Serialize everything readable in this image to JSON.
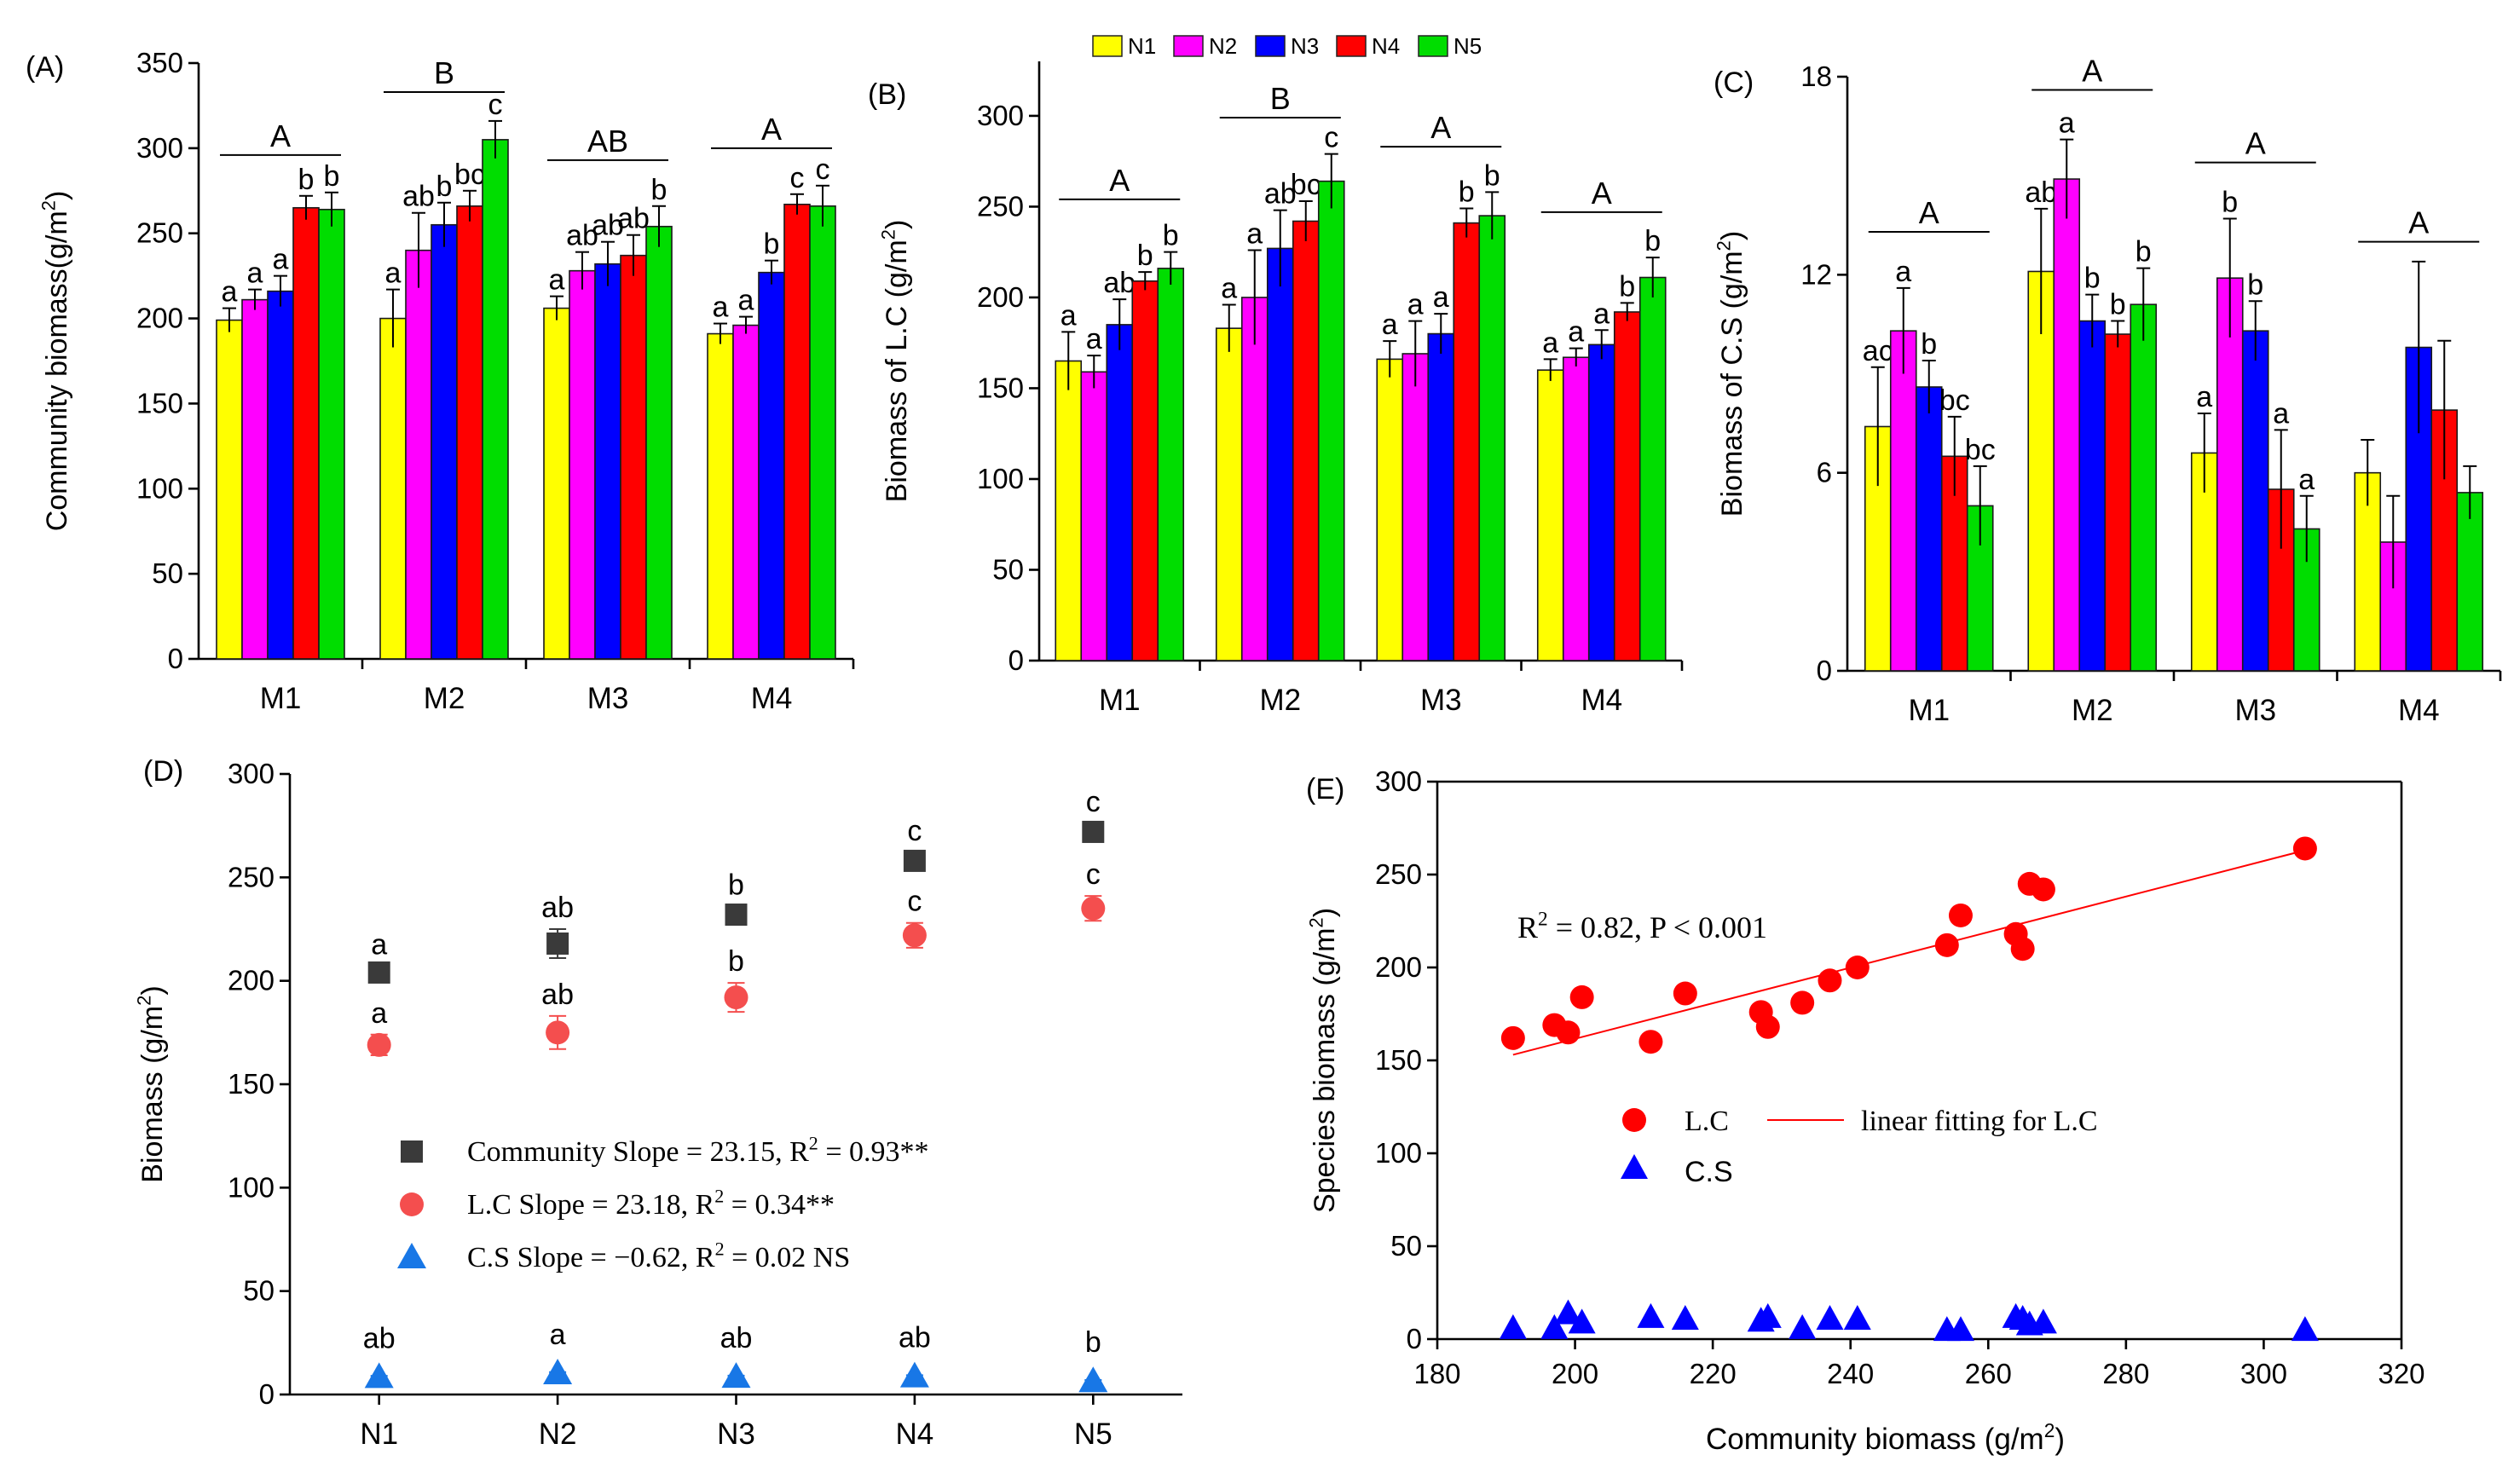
{
  "colors": {
    "N1": "#ffff00",
    "N2": "#ff00ff",
    "N3": "#0000ff",
    "N4": "#ff0000",
    "N5": "#00dd00",
    "community": "#3a3a3a",
    "lc_marker": "#f44e4e",
    "cs_marker": "#1877e6",
    "scatter_lc": "#ff0000",
    "scatter_cs": "#0000ff",
    "fit_line": "#ff0000"
  },
  "legend_top": [
    {
      "key": "N1",
      "label": "N1"
    },
    {
      "key": "N2",
      "label": "N2"
    },
    {
      "key": "N3",
      "label": "N3"
    },
    {
      "key": "N4",
      "label": "N4"
    },
    {
      "key": "N5",
      "label": "N5"
    }
  ],
  "chart_data": [
    {
      "id": "A",
      "type": "bar",
      "panel_label": "(A)",
      "ylabel": "Community biomass(g/m",
      "ylabel_sup": "2",
      "ylabel_tail": ")",
      "ylim": [
        0,
        350
      ],
      "yticks": [
        "0",
        "50",
        "100",
        "150",
        "200",
        "250",
        "300",
        "350"
      ],
      "categories": [
        "M1",
        "M2",
        "M3",
        "M4"
      ],
      "series": [
        {
          "name": "N1",
          "values": [
            199,
            200,
            206,
            191
          ],
          "errors": [
            7,
            17,
            7,
            6
          ]
        },
        {
          "name": "N2",
          "values": [
            211,
            240,
            228,
            196
          ],
          "errors": [
            6,
            22,
            11,
            5
          ]
        },
        {
          "name": "N3",
          "values": [
            216,
            255,
            232,
            227
          ],
          "errors": [
            9,
            13,
            13,
            7
          ]
        },
        {
          "name": "N4",
          "values": [
            265,
            266,
            237,
            267
          ],
          "errors": [
            7,
            9,
            12,
            6
          ]
        },
        {
          "name": "N5",
          "values": [
            264,
            305,
            254,
            266
          ],
          "errors": [
            10,
            11,
            12,
            12
          ]
        }
      ],
      "letters": [
        [
          "a",
          "a",
          "a",
          "b",
          "b"
        ],
        [
          "a",
          "ab",
          "b",
          "bc",
          "c"
        ],
        [
          "a",
          "ab",
          "ab",
          "ab",
          "b"
        ],
        [
          "a",
          "a",
          "b",
          "c",
          "c"
        ]
      ],
      "groups": [
        "A",
        "B",
        "AB",
        "A"
      ],
      "group_y": [
        296,
        333,
        293,
        300
      ]
    },
    {
      "id": "B",
      "type": "bar",
      "panel_label": "(B)",
      "ylabel": "Biomass of L.C (g/m",
      "ylabel_sup": "2",
      "ylabel_tail": ")",
      "ylim": [
        0,
        330
      ],
      "yticks": [
        "0",
        "50",
        "100",
        "150",
        "200",
        "250",
        "300"
      ],
      "categories": [
        "M1",
        "M2",
        "M3",
        "M4"
      ],
      "series": [
        {
          "name": "N1",
          "values": [
            165,
            183,
            166,
            160
          ],
          "errors": [
            16,
            13,
            10,
            6
          ]
        },
        {
          "name": "N2",
          "values": [
            159,
            200,
            169,
            167
          ],
          "errors": [
            9,
            26,
            18,
            5
          ]
        },
        {
          "name": "N3",
          "values": [
            185,
            227,
            180,
            174
          ],
          "errors": [
            14,
            21,
            11,
            8
          ]
        },
        {
          "name": "N4",
          "values": [
            209,
            242,
            241,
            192
          ],
          "errors": [
            5,
            11,
            8,
            5
          ]
        },
        {
          "name": "N5",
          "values": [
            216,
            264,
            245,
            211
          ],
          "errors": [
            9,
            15,
            13,
            11
          ]
        }
      ],
      "letters": [
        [
          "a",
          "a",
          "ab",
          "b",
          "b"
        ],
        [
          "a",
          "a",
          "ab",
          "bc",
          "c"
        ],
        [
          "a",
          "a",
          "a",
          "b",
          "b"
        ],
        [
          "a",
          "a",
          "a",
          "b",
          "b"
        ]
      ],
      "groups": [
        "A",
        "B",
        "A",
        "A"
      ],
      "group_y": [
        254,
        299,
        283,
        247
      ]
    },
    {
      "id": "C",
      "type": "bar",
      "panel_label": "(C)",
      "ylabel": "Biomass of C.S (g/m",
      "ylabel_sup": "2",
      "ylabel_tail": ")",
      "ylim": [
        0,
        18
      ],
      "yticks": [
        "0",
        "6",
        "12",
        "18"
      ],
      "categories": [
        "M1",
        "M2",
        "M3",
        "M4"
      ],
      "series": [
        {
          "name": "N1",
          "values": [
            7.4,
            12.1,
            6.6,
            6.0
          ],
          "errors": [
            1.8,
            1.9,
            1.2,
            1.0
          ]
        },
        {
          "name": "N2",
          "values": [
            10.3,
            14.9,
            11.9,
            3.9
          ],
          "errors": [
            1.3,
            1.2,
            1.8,
            1.4
          ]
        },
        {
          "name": "N3",
          "values": [
            8.6,
            10.6,
            10.3,
            9.8
          ],
          "errors": [
            0.8,
            0.8,
            0.9,
            2.6
          ]
        },
        {
          "name": "N4",
          "values": [
            6.5,
            10.2,
            5.5,
            7.9
          ],
          "errors": [
            1.2,
            0.4,
            1.8,
            2.1
          ]
        },
        {
          "name": "N5",
          "values": [
            5.0,
            11.1,
            4.3,
            5.4
          ],
          "errors": [
            1.2,
            1.1,
            1.0,
            0.8
          ]
        }
      ],
      "letters": [
        [
          "ac",
          "a",
          "b",
          "bc",
          "bc"
        ],
        [
          "ab",
          "a",
          "b",
          "b",
          "b"
        ],
        [
          "a",
          "b",
          "b",
          "a",
          "a"
        ],
        [
          "",
          "",
          "",
          "",
          ""
        ]
      ],
      "groups": [
        "A",
        "A",
        "A",
        "A"
      ],
      "group_y": [
        13.3,
        17.6,
        15.4,
        13.0
      ]
    },
    {
      "id": "D",
      "type": "scatter",
      "panel_label": "(D)",
      "ylabel": "Biomass (g/m",
      "ylabel_sup": "2",
      "ylabel_tail": ")",
      "ylim": [
        0,
        300
      ],
      "yticks": [
        "0",
        "50",
        "100",
        "150",
        "200",
        "250",
        "300"
      ],
      "categories": [
        "N1",
        "N2",
        "N3",
        "N4",
        "N5"
      ],
      "series": [
        {
          "name": "Community",
          "values": [
            204,
            218,
            232,
            258,
            272
          ],
          "errors": [
            3,
            7,
            4,
            4,
            4
          ],
          "letters": [
            "a",
            "ab",
            "b",
            "c",
            "c"
          ],
          "legend": "Community Slope = 23.15, R",
          "legend_sup": "2",
          "legend_tail": " = 0.93**"
        },
        {
          "name": "L.C",
          "values": [
            169,
            175,
            192,
            222,
            235
          ],
          "errors": [
            5,
            8,
            7,
            6,
            6
          ],
          "letters": [
            "a",
            "ab",
            "b",
            "c",
            "c"
          ],
          "legend": "L.C Slope = 23.18, R",
          "legend_sup": "2",
          "legend_tail": " = 0.34**"
        },
        {
          "name": "C.S",
          "values": [
            8.5,
            10.3,
            8.6,
            8.8,
            6.5
          ],
          "errors": [
            0.5,
            0.5,
            0.5,
            0.5,
            0.5
          ],
          "letters": [
            "ab",
            "a",
            "ab",
            "ab",
            "b"
          ],
          "legend": "C.S Slope = −0.62, R",
          "legend_sup": "2",
          "legend_tail": " = 0.02 NS"
        }
      ]
    },
    {
      "id": "E",
      "type": "scatter",
      "panel_label": "(E)",
      "xlabel": "Community biomass (g/m",
      "xlabel_sup": "2",
      "xlabel_tail": ")",
      "ylabel": "Species biomass (g/m",
      "ylabel_sup": "2",
      "ylabel_tail": ")",
      "xlim": [
        180,
        320
      ],
      "ylim": [
        0,
        300
      ],
      "xticks": [
        "180",
        "200",
        "220",
        "240",
        "260",
        "280",
        "300",
        "320"
      ],
      "yticks": [
        "0",
        "50",
        "100",
        "150",
        "200",
        "250",
        "300"
      ],
      "annotation": "R",
      "annotation_sup": "2",
      "annotation_tail": " = 0.82, P < 0.001",
      "legend": {
        "lc": "L.C",
        "fit": "linear fitting for L.C",
        "cs": "C.S"
      },
      "fit": {
        "x": [
          191,
          307
        ],
        "y": [
          153,
          264
        ]
      },
      "lc_points": [
        {
          "x": 191,
          "y": 162
        },
        {
          "x": 197,
          "y": 169
        },
        {
          "x": 199,
          "y": 165
        },
        {
          "x": 201,
          "y": 184
        },
        {
          "x": 211,
          "y": 160
        },
        {
          "x": 216,
          "y": 186
        },
        {
          "x": 227,
          "y": 176
        },
        {
          "x": 228,
          "y": 168
        },
        {
          "x": 233,
          "y": 181
        },
        {
          "x": 237,
          "y": 193
        },
        {
          "x": 241,
          "y": 200
        },
        {
          "x": 254,
          "y": 212
        },
        {
          "x": 256,
          "y": 228
        },
        {
          "x": 264,
          "y": 218
        },
        {
          "x": 265,
          "y": 210
        },
        {
          "x": 266,
          "y": 245
        },
        {
          "x": 268,
          "y": 242
        },
        {
          "x": 306,
          "y": 264
        }
      ],
      "cs_points": [
        {
          "x": 191,
          "y": 6
        },
        {
          "x": 197,
          "y": 6
        },
        {
          "x": 199,
          "y": 14
        },
        {
          "x": 201,
          "y": 9
        },
        {
          "x": 211,
          "y": 12
        },
        {
          "x": 216,
          "y": 11
        },
        {
          "x": 227,
          "y": 10
        },
        {
          "x": 228,
          "y": 12
        },
        {
          "x": 233,
          "y": 6
        },
        {
          "x": 237,
          "y": 11
        },
        {
          "x": 241,
          "y": 11
        },
        {
          "x": 254,
          "y": 5
        },
        {
          "x": 256,
          "y": 5
        },
        {
          "x": 264,
          "y": 12
        },
        {
          "x": 265,
          "y": 11
        },
        {
          "x": 266,
          "y": 8
        },
        {
          "x": 268,
          "y": 9
        },
        {
          "x": 306,
          "y": 5
        }
      ]
    }
  ]
}
